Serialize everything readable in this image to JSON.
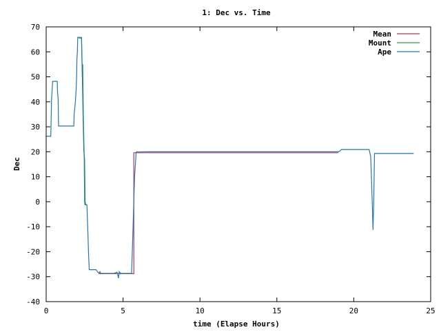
{
  "chart_data": {
    "type": "line",
    "title": "1: Dec vs. Time",
    "xlabel": "time (Elapse Hours)",
    "ylabel": "Dec",
    "xlim": [
      0,
      25
    ],
    "ylim": [
      -40,
      70
    ],
    "x_ticks": [
      0,
      5,
      10,
      15,
      20,
      25
    ],
    "y_ticks": [
      -40,
      -30,
      -20,
      -10,
      0,
      10,
      20,
      30,
      40,
      50,
      60,
      70
    ],
    "grid": false,
    "legend_position": "top-right",
    "series": [
      {
        "name": "Mean",
        "color": "#c0305a",
        "points": [
          [
            3.4,
            -28.8
          ],
          [
            5.7,
            -28.8
          ],
          [
            5.7,
            19.6
          ],
          [
            19.0,
            19.6
          ]
        ]
      },
      {
        "name": "Mount",
        "color": "#2ca02c",
        "points": [
          [
            2.1,
            65.5
          ],
          [
            2.3,
            65.5
          ],
          [
            2.35,
            50.0
          ],
          [
            2.38,
            55.0
          ],
          [
            2.42,
            33.5
          ],
          [
            2.47,
            20.0
          ],
          [
            2.5,
            0.0
          ],
          [
            2.52,
            -1.2
          ],
          [
            2.65,
            -1.2
          ]
        ]
      },
      {
        "name": "Ape",
        "color": "#1f77b4",
        "points": [
          [
            0.0,
            26.2
          ],
          [
            0.3,
            26.2
          ],
          [
            0.32,
            31.0
          ],
          [
            0.35,
            41.0
          ],
          [
            0.38,
            44.0
          ],
          [
            0.42,
            48.2
          ],
          [
            0.72,
            48.2
          ],
          [
            0.74,
            44.0
          ],
          [
            0.78,
            41.0
          ],
          [
            0.8,
            30.3
          ],
          [
            1.8,
            30.3
          ],
          [
            1.82,
            35.0
          ],
          [
            1.9,
            40.0
          ],
          [
            1.95,
            45.0
          ],
          [
            1.98,
            50.0
          ],
          [
            2.0,
            57.0
          ],
          [
            2.03,
            60.0
          ],
          [
            2.05,
            65.8
          ],
          [
            2.3,
            65.8
          ],
          [
            2.35,
            50.0
          ],
          [
            2.4,
            33.0
          ],
          [
            2.45,
            20.0
          ],
          [
            2.5,
            17.0
          ],
          [
            2.53,
            0.0
          ],
          [
            2.57,
            -1.2
          ],
          [
            2.65,
            -1.2
          ],
          [
            2.7,
            -10.0
          ],
          [
            2.75,
            -20.0
          ],
          [
            2.8,
            -27.2
          ],
          [
            3.25,
            -27.2
          ],
          [
            3.35,
            -28.2
          ],
          [
            3.45,
            -28.5
          ],
          [
            3.5,
            -28.0
          ],
          [
            3.55,
            -28.7
          ],
          [
            4.1,
            -28.7
          ],
          [
            4.4,
            -28.7
          ],
          [
            4.6,
            -28.2
          ],
          [
            4.65,
            -29.2
          ],
          [
            4.7,
            -30.6
          ],
          [
            4.75,
            -28.0
          ],
          [
            4.85,
            -28.7
          ],
          [
            5.55,
            -28.7
          ],
          [
            5.6,
            -20.0
          ],
          [
            5.65,
            -10.0
          ],
          [
            5.7,
            0.0
          ],
          [
            5.75,
            10.0
          ],
          [
            5.8,
            15.0
          ],
          [
            5.85,
            19.9
          ],
          [
            6.5,
            20.0
          ],
          [
            19.0,
            20.0
          ],
          [
            19.1,
            20.3
          ],
          [
            19.2,
            20.9
          ],
          [
            21.0,
            20.9
          ],
          [
            21.1,
            18.0
          ],
          [
            21.2,
            0.0
          ],
          [
            21.25,
            -11.3
          ],
          [
            21.3,
            0.0
          ],
          [
            21.35,
            19.3
          ],
          [
            23.9,
            19.3
          ]
        ]
      }
    ]
  }
}
